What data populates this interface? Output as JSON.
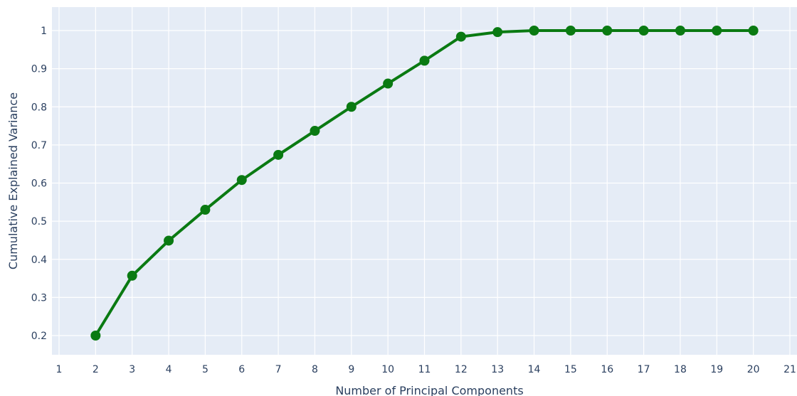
{
  "chart_data": {
    "type": "line",
    "x": [
      2,
      3,
      4,
      5,
      6,
      7,
      8,
      9,
      10,
      11,
      12,
      13,
      14,
      15,
      16,
      17,
      18,
      19,
      20
    ],
    "series": [
      {
        "values": [
          0.2,
          0.357,
          0.449,
          0.53,
          0.608,
          0.674,
          0.737,
          0.8,
          0.861,
          0.921,
          0.984,
          0.996,
          1,
          1,
          1,
          1,
          1,
          1,
          1
        ]
      }
    ],
    "title": "",
    "xlabel": "Number of Principal Components",
    "ylabel": "Cumulative Explained Variance",
    "xlim": [
      1,
      21
    ],
    "ylim": [
      0.2,
      1
    ],
    "x_ticks": [
      "1",
      "2",
      "3",
      "4",
      "5",
      "6",
      "7",
      "8",
      "9",
      "10",
      "11",
      "12",
      "13",
      "14",
      "15",
      "16",
      "17",
      "18",
      "19",
      "20",
      "21"
    ],
    "y_ticks": [
      "0.2",
      "0.3",
      "0.4",
      "0.5",
      "0.6",
      "0.7",
      "0.8",
      "0.9",
      "1"
    ],
    "grid": true,
    "markers": true,
    "colors": {
      "line": "#0a7a12",
      "marker": "#0a7a12",
      "plot_background": "#e5ecf6",
      "grid": "#ffffff",
      "text": "#2a3f5f"
    }
  }
}
